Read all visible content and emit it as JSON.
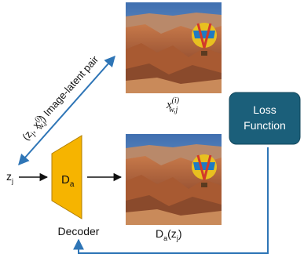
{
  "pair_label": {
    "parts": [
      "(z",
      "j",
      ", x",
      "(i)",
      "w,j",
      ")",
      " Image-latent pair"
    ]
  },
  "latent": {
    "base": "z",
    "sub": "j"
  },
  "decoder": {
    "symbol": {
      "base": "D",
      "sub": "a"
    },
    "label": "Decoder"
  },
  "watermarked_image": {
    "base": "x",
    "sup": "(i)",
    "sub": "w,j"
  },
  "output": {
    "parts": [
      "D",
      "a",
      "(z",
      "j",
      ")"
    ]
  },
  "loss": {
    "lines": [
      "Loss",
      "Function"
    ]
  }
}
